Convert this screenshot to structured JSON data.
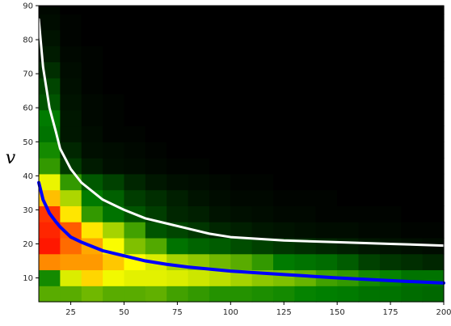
{
  "chart_data": {
    "type": "heatmap",
    "title": "",
    "xlabel": "",
    "ylabel": "v",
    "xlim": [
      10,
      200
    ],
    "ylim": [
      3,
      90
    ],
    "x_bin_edges": [
      10,
      20,
      30,
      40,
      50,
      60,
      70,
      80,
      90,
      100,
      110,
      120,
      130,
      140,
      150,
      160,
      170,
      180,
      190,
      200
    ],
    "y_bin_edges": [
      3,
      7.7,
      12.4,
      17.1,
      21.8,
      26.5,
      31.2,
      35.9,
      40.6,
      45.3,
      50,
      54.7,
      59.4,
      64.1,
      68.8,
      73.5,
      78.2,
      82.9,
      87.6,
      90
    ],
    "xticks": [
      25,
      50,
      75,
      100,
      125,
      150,
      175,
      200
    ],
    "yticks": [
      10,
      20,
      30,
      40,
      50,
      60,
      70,
      80,
      90
    ],
    "grid": false,
    "colormap_stops": [
      "#000000",
      "#008000",
      "#ffff00",
      "#ff0000"
    ],
    "intensity_rows_bottom_to_top": [
      [
        0.45,
        0.45,
        0.48,
        0.45,
        0.45,
        0.46,
        0.42,
        0.4,
        0.38,
        0.38,
        0.37,
        0.36,
        0.34,
        0.33,
        0.32,
        0.3,
        0.3,
        0.28,
        0.27
      ],
      [
        0.36,
        0.62,
        0.72,
        0.65,
        0.63,
        0.63,
        0.62,
        0.6,
        0.58,
        0.55,
        0.52,
        0.5,
        0.47,
        0.42,
        0.4,
        0.36,
        0.34,
        0.3,
        0.3
      ],
      [
        0.82,
        0.8,
        0.8,
        0.74,
        0.67,
        0.62,
        0.55,
        0.52,
        0.48,
        0.45,
        0.4,
        0.32,
        0.3,
        0.28,
        0.24,
        0.17,
        0.14,
        0.12,
        0.1
      ],
      [
        0.97,
        0.86,
        0.78,
        0.66,
        0.5,
        0.44,
        0.3,
        0.26,
        0.24,
        0.2,
        0.17,
        0.14,
        0.12,
        0.1,
        0.08,
        0.06,
        0.05,
        0.04,
        0.03
      ],
      [
        0.95,
        0.88,
        0.7,
        0.55,
        0.42,
        0.22,
        0.18,
        0.14,
        0.1,
        0.08,
        0.06,
        0.05,
        0.04,
        0.03,
        0.03,
        0.02,
        0.02,
        0.01,
        0.01
      ],
      [
        0.93,
        0.7,
        0.4,
        0.3,
        0.22,
        0.16,
        0.1,
        0.08,
        0.05,
        0.04,
        0.03,
        0.02,
        0.02,
        0.01,
        0.01,
        0.01,
        0.01,
        0.0,
        0.0
      ],
      [
        0.75,
        0.56,
        0.32,
        0.25,
        0.16,
        0.12,
        0.08,
        0.05,
        0.03,
        0.02,
        0.02,
        0.01,
        0.01,
        0.01,
        0.0,
        0.0,
        0.0,
        0.0,
        0.0
      ],
      [
        0.64,
        0.4,
        0.23,
        0.17,
        0.1,
        0.06,
        0.04,
        0.03,
        0.02,
        0.01,
        0.01,
        0.0,
        0.0,
        0.0,
        0.0,
        0.0,
        0.0,
        0.0,
        0.0
      ],
      [
        0.4,
        0.15,
        0.07,
        0.04,
        0.03,
        0.02,
        0.01,
        0.01,
        0.0,
        0.0,
        0.0,
        0.0,
        0.0,
        0.0,
        0.0,
        0.0,
        0.0,
        0.0,
        0.0
      ],
      [
        0.36,
        0.1,
        0.04,
        0.03,
        0.02,
        0.01,
        0.0,
        0.0,
        0.0,
        0.0,
        0.0,
        0.0,
        0.0,
        0.0,
        0.0,
        0.0,
        0.0,
        0.0,
        0.0
      ],
      [
        0.3,
        0.06,
        0.03,
        0.01,
        0.01,
        0.0,
        0.0,
        0.0,
        0.0,
        0.0,
        0.0,
        0.0,
        0.0,
        0.0,
        0.0,
        0.0,
        0.0,
        0.0,
        0.0
      ],
      [
        0.32,
        0.06,
        0.02,
        0.01,
        0.0,
        0.0,
        0.0,
        0.0,
        0.0,
        0.0,
        0.0,
        0.0,
        0.0,
        0.0,
        0.0,
        0.0,
        0.0,
        0.0,
        0.0
      ],
      [
        0.22,
        0.05,
        0.02,
        0.01,
        0.0,
        0.0,
        0.0,
        0.0,
        0.0,
        0.0,
        0.0,
        0.0,
        0.0,
        0.0,
        0.0,
        0.0,
        0.0,
        0.0,
        0.0
      ],
      [
        0.18,
        0.04,
        0.01,
        0.0,
        0.0,
        0.0,
        0.0,
        0.0,
        0.0,
        0.0,
        0.0,
        0.0,
        0.0,
        0.0,
        0.0,
        0.0,
        0.0,
        0.0,
        0.0
      ],
      [
        0.12,
        0.03,
        0.01,
        0.0,
        0.0,
        0.0,
        0.0,
        0.0,
        0.0,
        0.0,
        0.0,
        0.0,
        0.0,
        0.0,
        0.0,
        0.0,
        0.0,
        0.0,
        0.0
      ],
      [
        0.07,
        0.02,
        0.01,
        0.0,
        0.0,
        0.0,
        0.0,
        0.0,
        0.0,
        0.0,
        0.0,
        0.0,
        0.0,
        0.0,
        0.0,
        0.0,
        0.0,
        0.0,
        0.0
      ],
      [
        0.05,
        0.01,
        0.0,
        0.0,
        0.0,
        0.0,
        0.0,
        0.0,
        0.0,
        0.0,
        0.0,
        0.0,
        0.0,
        0.0,
        0.0,
        0.0,
        0.0,
        0.0,
        0.0
      ],
      [
        0.03,
        0.01,
        0.0,
        0.0,
        0.0,
        0.0,
        0.0,
        0.0,
        0.0,
        0.0,
        0.0,
        0.0,
        0.0,
        0.0,
        0.0,
        0.0,
        0.0,
        0.0,
        0.0
      ],
      [
        0.02,
        0.0,
        0.0,
        0.0,
        0.0,
        0.0,
        0.0,
        0.0,
        0.0,
        0.0,
        0.0,
        0.0,
        0.0,
        0.0,
        0.0,
        0.0,
        0.0,
        0.0,
        0.0
      ]
    ],
    "curves": [
      {
        "color": "#ffffff",
        "x": [
          10,
          12,
          15,
          18,
          20,
          25,
          30,
          40,
          50,
          60,
          70,
          80,
          90,
          100,
          125,
          150,
          175,
          200
        ],
        "y": [
          86,
          72,
          60,
          53,
          48,
          42,
          38,
          33,
          30,
          27.5,
          26,
          24.5,
          23,
          22,
          21,
          20.5,
          20,
          19.5
        ]
      },
      {
        "color": "#0000ff",
        "x": [
          10,
          12,
          15,
          18,
          20,
          25,
          30,
          40,
          50,
          60,
          70,
          80,
          90,
          100,
          125,
          150,
          175,
          200
        ],
        "y": [
          38,
          33,
          29,
          26.5,
          25,
          22,
          20.5,
          18,
          16.5,
          15,
          14,
          13.2,
          12.6,
          12,
          11,
          10,
          9.2,
          8.5
        ]
      }
    ]
  }
}
